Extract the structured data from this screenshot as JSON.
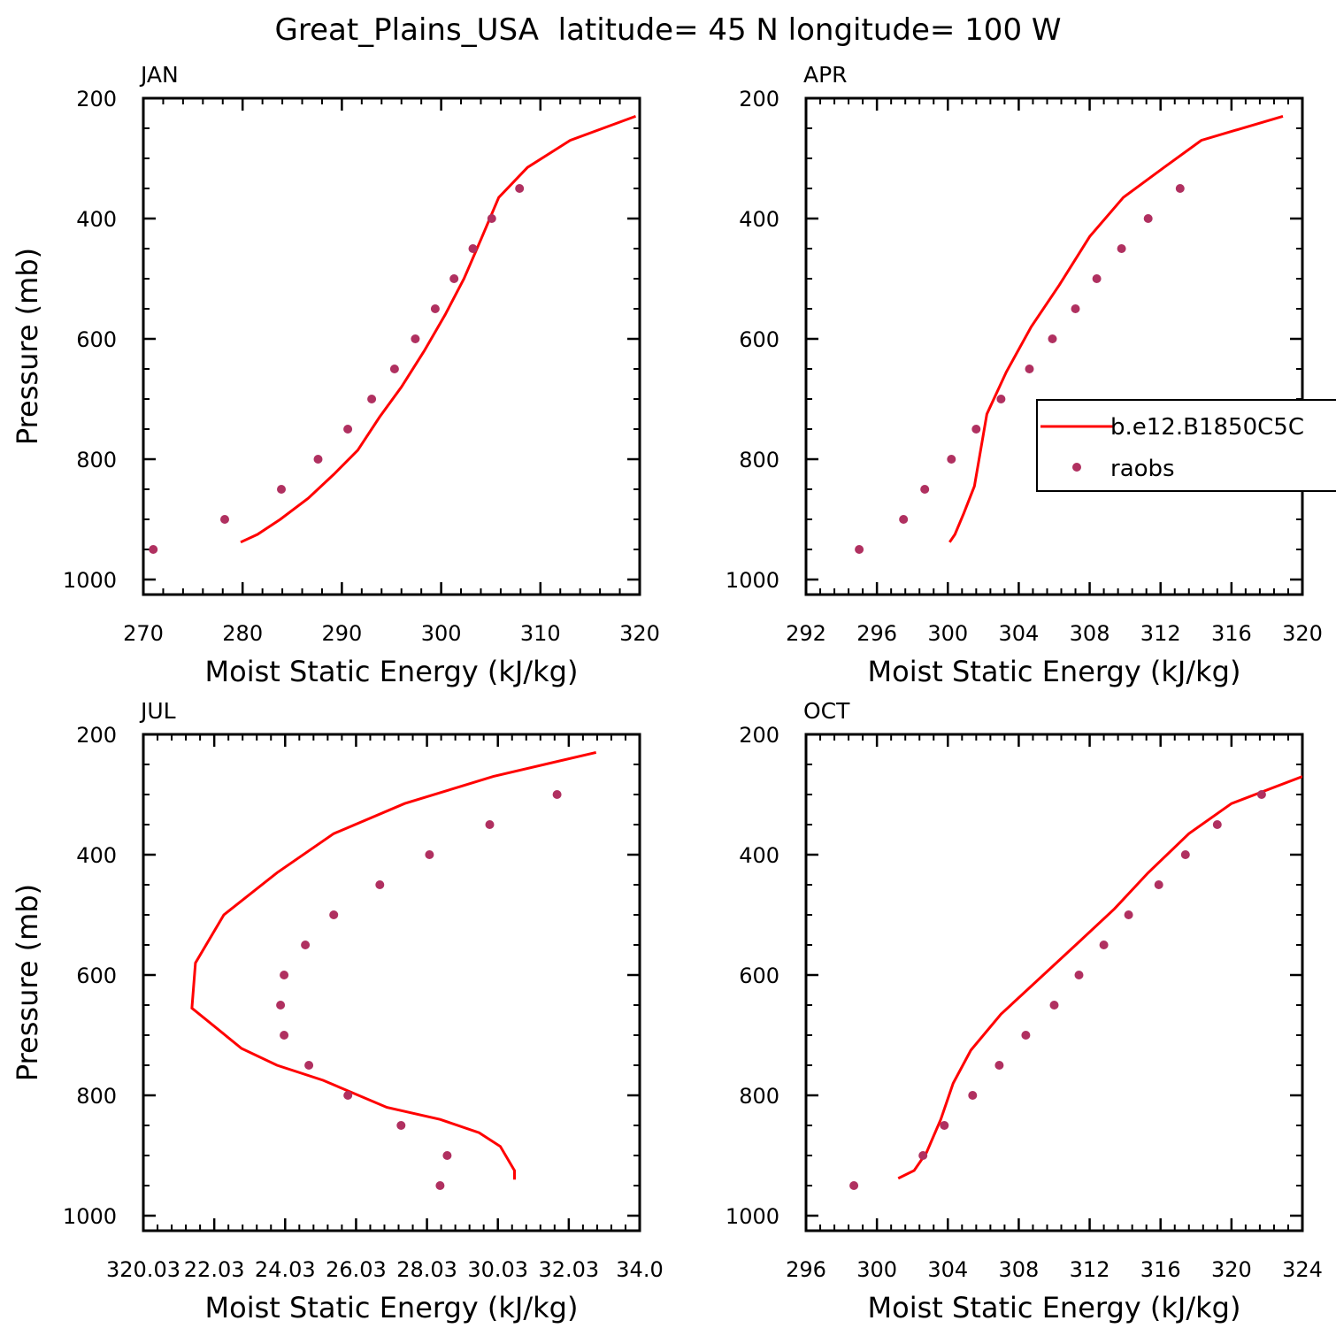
{
  "figure": {
    "title": "Great_Plains_USA  latitude= 45 N longitude= 100 W"
  },
  "legend": {
    "model_label": "b.e12.B1850C5C",
    "obs_label": "raobs",
    "model_color": "#ff0000",
    "obs_color": "#b03060"
  },
  "chart_data": [
    {
      "type": "line",
      "panel": "JAN",
      "xlabel": "Moist Static Energy (kJ/kg)",
      "ylabel": "Pressure (mb)",
      "xlim": [
        270,
        320
      ],
      "ylim": [
        1025,
        200
      ],
      "xticks": [
        270,
        280,
        290,
        300,
        310,
        320
      ],
      "xtick_labels": [
        "270",
        "280",
        "290",
        "300",
        "310",
        "320"
      ],
      "yticks": [
        200,
        400,
        600,
        800,
        1000
      ],
      "ytick_labels": [
        "200",
        "400",
        "600",
        "800",
        "1000"
      ],
      "series": [
        {
          "name": "b.e12.B1850C5C",
          "kind": "line",
          "x": [
            279.8,
            281.5,
            283.8,
            286.6,
            289.2,
            291.6,
            293.8,
            296.0,
            298.3,
            300.4,
            302.3,
            304.0,
            305.8,
            308.7,
            313.0,
            319.6
          ],
          "y": [
            938,
            925,
            900,
            865,
            825,
            785,
            730,
            680,
            620,
            560,
            500,
            435,
            365,
            315,
            270,
            230
          ]
        },
        {
          "name": "raobs",
          "kind": "scatter",
          "x": [
            271.0,
            278.2,
            283.9,
            287.6,
            290.6,
            293.0,
            295.3,
            297.4,
            299.4,
            301.3,
            303.2,
            305.1,
            307.9
          ],
          "y": [
            950,
            900,
            850,
            800,
            750,
            700,
            650,
            600,
            550,
            500,
            450,
            400,
            350
          ]
        }
      ]
    },
    {
      "type": "line",
      "panel": "APR",
      "xlabel": "Moist Static Energy (kJ/kg)",
      "ylabel": "",
      "xlim": [
        292,
        320
      ],
      "ylim": [
        1025,
        200
      ],
      "xticks": [
        292,
        296,
        300,
        304,
        308,
        312,
        316,
        320
      ],
      "xtick_labels": [
        "292",
        "296",
        "300",
        "304",
        "308",
        "312",
        "316",
        "320"
      ],
      "yticks": [
        200,
        400,
        600,
        800,
        1000
      ],
      "ytick_labels": [
        "200",
        "400",
        "600",
        "800",
        "1000"
      ],
      "series": [
        {
          "name": "b.e12.B1850C5C",
          "kind": "line",
          "x": [
            300.1,
            300.4,
            300.9,
            301.5,
            302.2,
            303.3,
            304.7,
            306.3,
            308.0,
            309.9,
            312.2,
            314.3,
            318.9
          ],
          "y": [
            938,
            925,
            890,
            845,
            725,
            655,
            580,
            510,
            430,
            365,
            315,
            270,
            230
          ]
        },
        {
          "name": "raobs",
          "kind": "scatter",
          "x": [
            295.0,
            297.5,
            298.7,
            300.2,
            301.6,
            303.0,
            304.6,
            305.9,
            307.2,
            308.4,
            309.8,
            311.3,
            313.1
          ],
          "y": [
            950,
            900,
            850,
            800,
            750,
            700,
            650,
            600,
            550,
            500,
            450,
            400,
            350
          ]
        }
      ]
    },
    {
      "type": "line",
      "panel": "JUL",
      "xlabel": "Moist Static Energy (kJ/kg)",
      "ylabel": "Pressure (mb)",
      "xlim": [
        320.03,
        334.03
      ],
      "ylim": [
        1025,
        200
      ],
      "xticks": [
        320.03,
        322.03,
        324.03,
        326.03,
        328.03,
        330.03,
        332.03,
        334.03
      ],
      "xtick_labels": [
        "320.03",
        "22.03",
        "24.03",
        "26.03",
        "28.03",
        "30.03",
        "32.03",
        "34.0"
      ],
      "yticks": [
        200,
        400,
        600,
        800,
        1000
      ],
      "ytick_labels": [
        "200",
        "400",
        "600",
        "800",
        "1000"
      ],
      "series": [
        {
          "name": "b.e12.B1850C5C",
          "kind": "line",
          "x": [
            330.5,
            330.5,
            330.1,
            329.5,
            328.4,
            326.9,
            325.1,
            323.8,
            322.8,
            321.4,
            321.5,
            322.3,
            323.8,
            325.4,
            327.4,
            329.9,
            332.8
          ],
          "y": [
            940,
            925,
            885,
            862,
            840,
            820,
            775,
            750,
            722,
            655,
            580,
            500,
            430,
            365,
            315,
            270,
            230
          ]
        },
        {
          "name": "raobs",
          "kind": "scatter",
          "x": [
            328.4,
            328.6,
            327.3,
            325.8,
            324.7,
            324.0,
            323.9,
            324.0,
            324.6,
            325.4,
            326.7,
            328.1,
            329.8,
            331.7
          ],
          "y": [
            950,
            900,
            850,
            800,
            750,
            700,
            650,
            600,
            550,
            500,
            450,
            400,
            350,
            300
          ]
        }
      ]
    },
    {
      "type": "line",
      "panel": "OCT",
      "xlabel": "Moist Static Energy (kJ/kg)",
      "ylabel": "",
      "xlim": [
        296,
        324
      ],
      "ylim": [
        1025,
        200
      ],
      "xticks": [
        296,
        300,
        304,
        308,
        312,
        316,
        320,
        324
      ],
      "xtick_labels": [
        "296",
        "300",
        "304",
        "308",
        "312",
        "316",
        "320",
        "324"
      ],
      "yticks": [
        200,
        400,
        600,
        800,
        1000
      ],
      "ytick_labels": [
        "200",
        "400",
        "600",
        "800",
        "1000"
      ],
      "series": [
        {
          "name": "b.e12.B1850C5C",
          "kind": "line",
          "x": [
            301.2,
            302.1,
            302.8,
            303.6,
            304.3,
            305.3,
            307.0,
            309.2,
            311.4,
            313.4,
            315.3,
            317.6,
            320.0,
            324.0
          ],
          "y": [
            938,
            925,
            895,
            840,
            780,
            725,
            665,
            605,
            545,
            490,
            430,
            365,
            315,
            270
          ]
        },
        {
          "name": "raobs",
          "kind": "scatter",
          "x": [
            298.7,
            302.6,
            303.8,
            305.4,
            306.9,
            308.4,
            310.0,
            311.4,
            312.8,
            314.2,
            315.9,
            317.4,
            319.2,
            321.7
          ],
          "y": [
            950,
            900,
            850,
            800,
            750,
            700,
            650,
            600,
            550,
            500,
            450,
            400,
            350,
            300
          ]
        }
      ]
    }
  ]
}
